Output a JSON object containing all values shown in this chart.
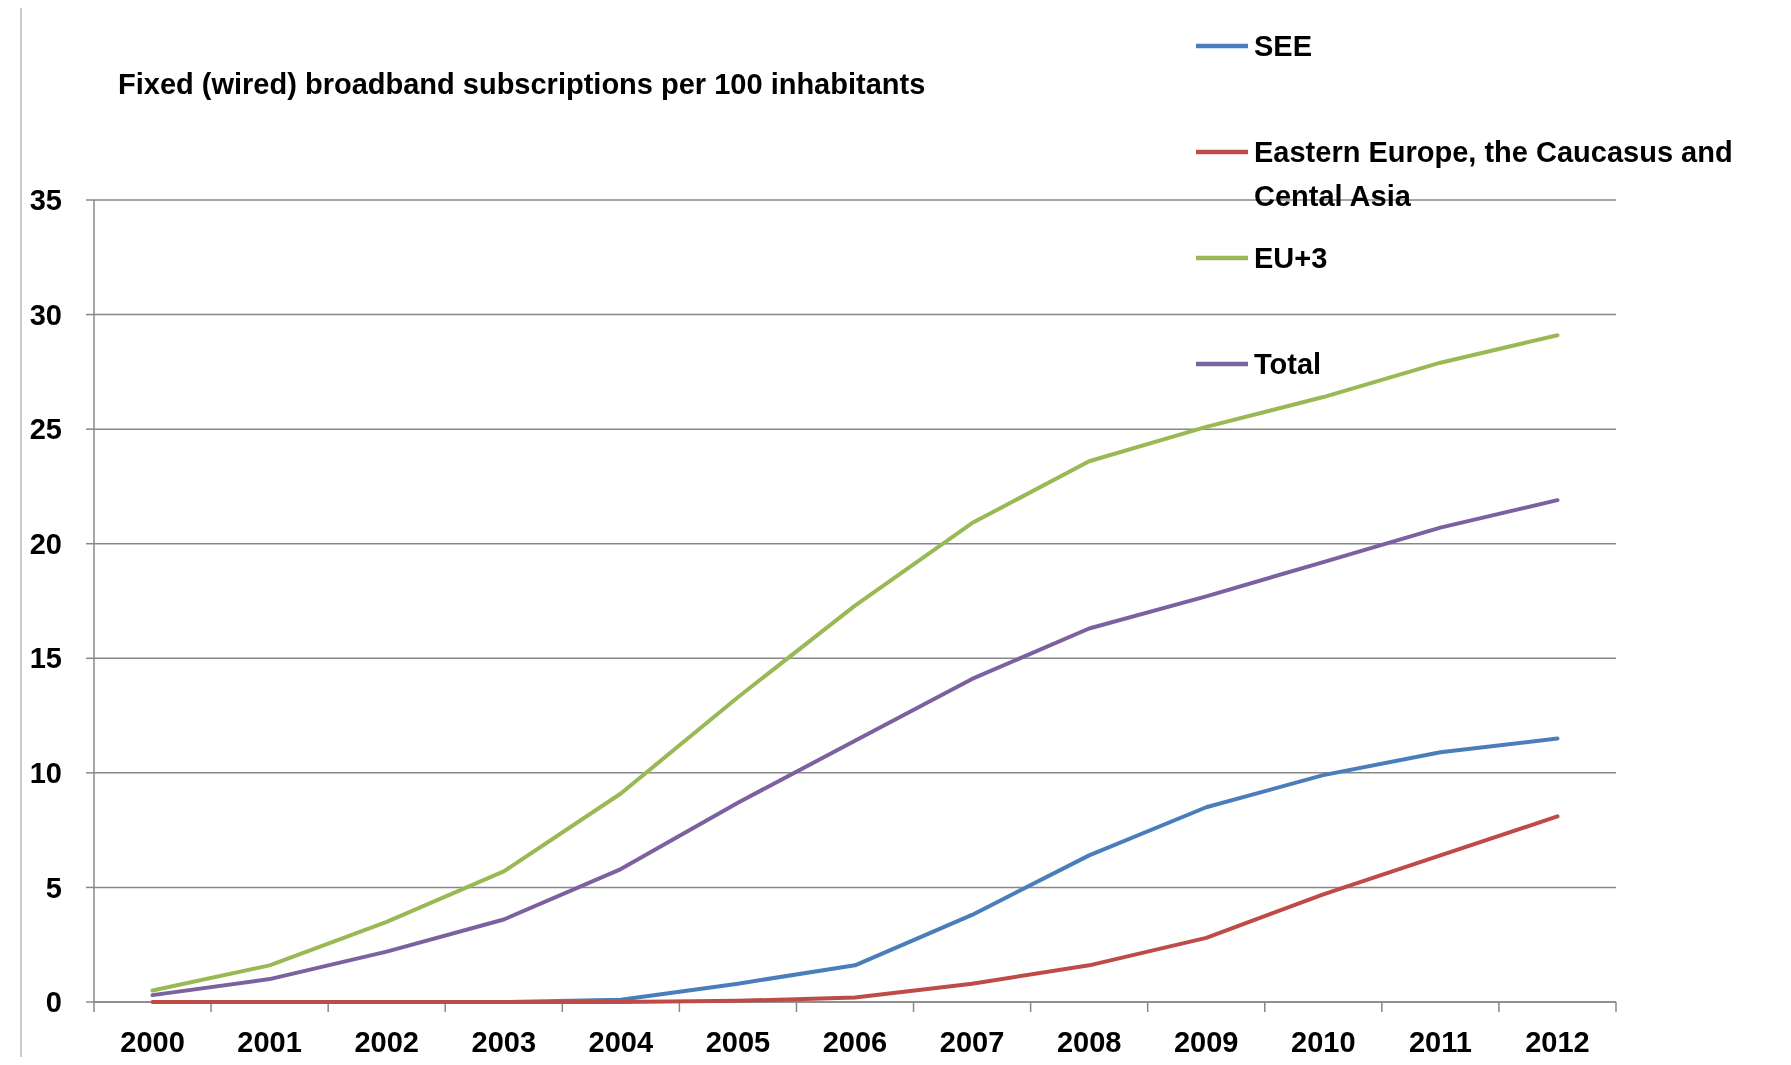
{
  "chart_data": {
    "type": "line",
    "title": "Fixed (wired) broadband subscriptions per 100 inhabitants",
    "categories": [
      "2000",
      "2001",
      "2002",
      "2003",
      "2004",
      "2005",
      "2006",
      "2007",
      "2008",
      "2009",
      "2010",
      "2011",
      "2012"
    ],
    "series": [
      {
        "name": "SEE",
        "color": "#4a7ebb",
        "values": [
          null,
          null,
          0,
          0,
          0.1,
          0.8,
          1.6,
          3.8,
          6.4,
          8.5,
          9.9,
          10.9,
          11.5
        ]
      },
      {
        "name": "Eastern Europe, the Caucasus and Cental Asia",
        "color": "#be4b48",
        "values": [
          0,
          0,
          0,
          0,
          0,
          0.05,
          0.2,
          0.8,
          1.6,
          2.8,
          4.7,
          6.4,
          8.1
        ]
      },
      {
        "name": "EU+3",
        "color": "#98b954",
        "values": [
          0.5,
          1.6,
          3.5,
          5.7,
          9.1,
          13.3,
          17.3,
          20.9,
          23.6,
          25.1,
          26.4,
          27.9,
          29.1
        ]
      },
      {
        "name": "Total",
        "color": "#7d60a0",
        "values": [
          0.3,
          1.0,
          2.2,
          3.6,
          5.8,
          8.7,
          11.4,
          14.1,
          16.3,
          17.7,
          19.2,
          20.7,
          21.9
        ]
      }
    ],
    "ylim": [
      0,
      35
    ],
    "yticks": [
      0,
      5,
      10,
      15,
      20,
      25,
      30,
      35
    ],
    "grid": "y",
    "legend": "top right",
    "marker": "none",
    "line_style": "solid"
  }
}
